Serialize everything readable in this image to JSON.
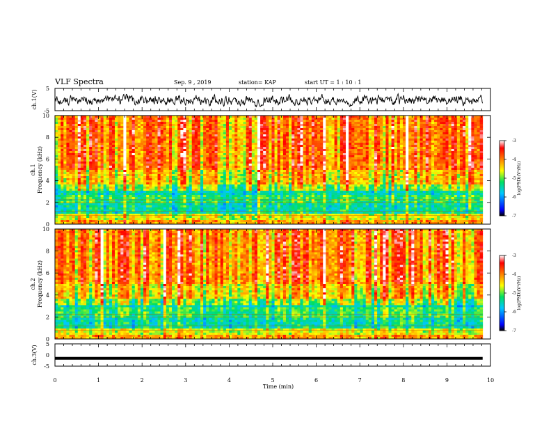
{
  "header": {
    "title": "VLF Spectra",
    "date": "Sep. 9 , 2019",
    "station": "station= KAP",
    "start_ut": "start UT =  1 : 10 : 1"
  },
  "chart_data": [
    {
      "type": "line",
      "panel": "ch1-waveform",
      "ylabel": "ch.1(V)",
      "ylim": [
        -5,
        5
      ],
      "yticks": [
        "5",
        "-5"
      ],
      "xlim": [
        0,
        10
      ],
      "series": [
        {
          "description": "noisy waveform between about -3 and 2.5 V over 0 to 9.8 min",
          "color": "#000000"
        }
      ]
    },
    {
      "type": "heatmap",
      "panel": "ch1-spectrogram",
      "ylabel": "ch.1\nFrequency (kHz)",
      "ylabel_lines": [
        "ch.1",
        "Frequency (kHz)"
      ],
      "ylim": [
        0,
        10
      ],
      "yticks": [
        "0",
        "2",
        "4",
        "6",
        "8",
        "10"
      ],
      "xlim": [
        0,
        10
      ],
      "colorbar": {
        "label": "log(PSD)(V²/Hz)",
        "range": [
          -7,
          -3
        ],
        "ticks": [
          "-3",
          "-4",
          "-5",
          "-6",
          "-7"
        ]
      }
    },
    {
      "type": "heatmap",
      "panel": "ch2-spectrogram",
      "ylabel": "ch.2\nFrequency (kHz)",
      "ylabel_lines": [
        "ch.2",
        "Frequency (kHz)"
      ],
      "ylim": [
        0,
        10
      ],
      "yticks": [
        "0",
        "2",
        "4",
        "6",
        "8",
        "10"
      ],
      "xlim": [
        0,
        10
      ],
      "colorbar": {
        "label": "log(PSD)(V²/Hz)",
        "range": [
          -7,
          -3
        ],
        "ticks": [
          "-3",
          "-4",
          "-5",
          "-6",
          "-7"
        ]
      }
    },
    {
      "type": "line",
      "panel": "ch3-waveform",
      "ylabel": "ch.3(V)",
      "ylim": [
        -5,
        5
      ],
      "yticks": [
        "5",
        "0",
        "-5"
      ],
      "xlim": [
        0,
        10
      ],
      "series": [
        {
          "description": "flat line near -1.5 V",
          "constant_value": -1.5,
          "color": "#000000"
        }
      ]
    }
  ],
  "xaxis": {
    "label": "Time (min)",
    "ticks": [
      "0",
      "1",
      "2",
      "3",
      "4",
      "5",
      "6",
      "7",
      "8",
      "9",
      "10"
    ],
    "data_end": 9.82
  }
}
